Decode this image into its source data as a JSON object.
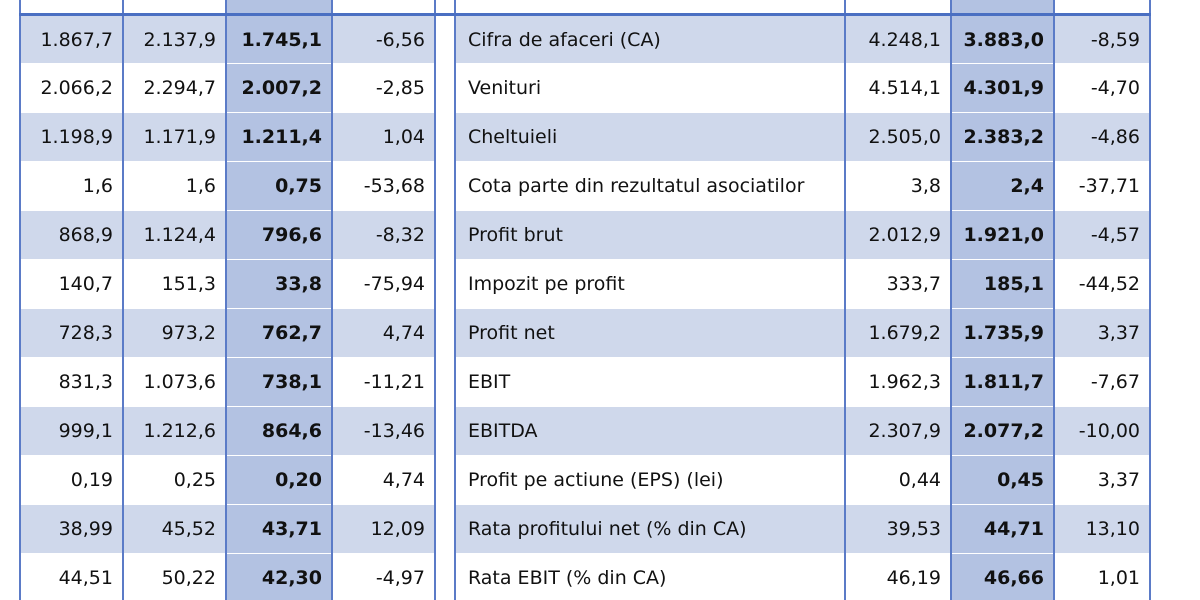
{
  "rows": [
    {
      "v1": "1.867,7",
      "v2": "2.137,9",
      "v3": "1.745,1",
      "v4": "-6,56",
      "label": "Cifra de afaceri (CA)",
      "v5": "4.248,1",
      "v6": "3.883,0",
      "v7": "-8,59"
    },
    {
      "v1": "2.066,2",
      "v2": "2.294,7",
      "v3": "2.007,2",
      "v4": "-2,85",
      "label": "Venituri",
      "v5": "4.514,1",
      "v6": "4.301,9",
      "v7": "-4,70"
    },
    {
      "v1": "1.198,9",
      "v2": "1.171,9",
      "v3": "1.211,4",
      "v4": "1,04",
      "label": "Cheltuieli",
      "v5": "2.505,0",
      "v6": "2.383,2",
      "v7": "-4,86"
    },
    {
      "v1": "1,6",
      "v2": "1,6",
      "v3": "0,75",
      "v4": "-53,68",
      "label": "Cota parte din rezultatul asociatilor",
      "v5": "3,8",
      "v6": "2,4",
      "v7": "-37,71"
    },
    {
      "v1": "868,9",
      "v2": "1.124,4",
      "v3": "796,6",
      "v4": "-8,32",
      "label": "Profit brut",
      "v5": "2.012,9",
      "v6": "1.921,0",
      "v7": "-4,57"
    },
    {
      "v1": "140,7",
      "v2": "151,3",
      "v3": "33,8",
      "v4": "-75,94",
      "label": "Impozit pe profit",
      "v5": "333,7",
      "v6": "185,1",
      "v7": "-44,52"
    },
    {
      "v1": "728,3",
      "v2": "973,2",
      "v3": "762,7",
      "v4": "4,74",
      "label": "Profit net",
      "v5": "1.679,2",
      "v6": "1.735,9",
      "v7": "3,37"
    },
    {
      "v1": "831,3",
      "v2": "1.073,6",
      "v3": "738,1",
      "v4": "-11,21",
      "label": "EBIT",
      "v5": "1.962,3",
      "v6": "1.811,7",
      "v7": "-7,67"
    },
    {
      "v1": "999,1",
      "v2": "1.212,6",
      "v3": "864,6",
      "v4": "-13,46",
      "label": "EBITDA",
      "v5": "2.307,9",
      "v6": "2.077,2",
      "v7": "-10,00"
    },
    {
      "v1": "0,19",
      "v2": "0,25",
      "v3": "0,20",
      "v4": "4,74",
      "label": "Profit pe actiune (EPS) (lei)",
      "v5": "0,44",
      "v6": "0,45",
      "v7": "3,37"
    },
    {
      "v1": "38,99",
      "v2": "45,52",
      "v3": "43,71",
      "v4": "12,09",
      "label": "Rata profitului net (% din CA)",
      "v5": "39,53",
      "v6": "44,71",
      "v7": "13,10"
    },
    {
      "v1": "44,51",
      "v2": "50,22",
      "v3": "42,30",
      "v4": "-4,97",
      "label": "Rata EBIT (% din CA)",
      "v5": "46,19",
      "v6": "46,66",
      "v7": "1,01"
    }
  ]
}
